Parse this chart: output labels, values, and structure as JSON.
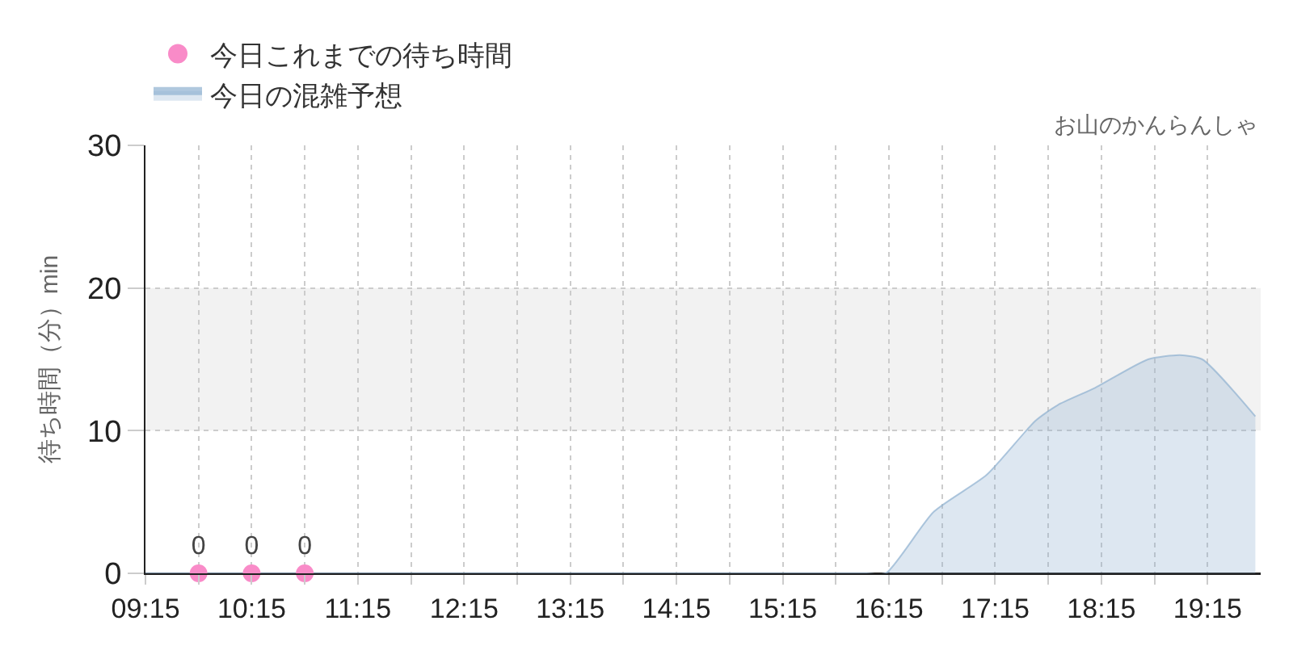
{
  "chart_data": {
    "type": "area",
    "subtitle": "お山のかんらんしゃ",
    "ylabel": "待ち時間（分）min",
    "xlim": [
      9.25,
      19.75
    ],
    "xticks": [
      {
        "value": 9.25,
        "label": "09:15"
      },
      {
        "value": 9.75,
        "label": null
      },
      {
        "value": 10.25,
        "label": "10:15"
      },
      {
        "value": 10.75,
        "label": null
      },
      {
        "value": 11.25,
        "label": "11:15"
      },
      {
        "value": 11.75,
        "label": null
      },
      {
        "value": 12.25,
        "label": "12:15"
      },
      {
        "value": 12.75,
        "label": null
      },
      {
        "value": 13.25,
        "label": "13:15"
      },
      {
        "value": 13.75,
        "label": null
      },
      {
        "value": 14.25,
        "label": "14:15"
      },
      {
        "value": 14.75,
        "label": null
      },
      {
        "value": 15.25,
        "label": "15:15"
      },
      {
        "value": 15.75,
        "label": null
      },
      {
        "value": 16.25,
        "label": "16:15"
      },
      {
        "value": 16.75,
        "label": null
      },
      {
        "value": 17.25,
        "label": "17:15"
      },
      {
        "value": 17.75,
        "label": null
      },
      {
        "value": 18.25,
        "label": "18:15"
      },
      {
        "value": 18.75,
        "label": null
      },
      {
        "value": 19.25,
        "label": "19:15"
      }
    ],
    "ylim": [
      0,
      30
    ],
    "yticks": [
      0,
      10,
      20,
      30
    ],
    "grid": true,
    "legend": "top left",
    "bands": [
      {
        "axis": "y",
        "from": 10,
        "to": 20,
        "color": "#f2f2f2"
      }
    ],
    "series": [
      {
        "name": "今日これまでの待ち時間",
        "type": "scatter",
        "marker": "circle",
        "color": "#f98bc8",
        "x": [
          9.75,
          10.25,
          10.75
        ],
        "values": [
          0,
          0,
          0
        ],
        "value_labels": [
          "0",
          "0",
          "0"
        ]
      },
      {
        "name": "今日の混雑予想",
        "color": "#8fb1d0",
        "x": [
          9.25,
          12,
          15.9,
          16.04,
          16.22,
          16.67,
          17.17,
          17.63,
          17.84,
          18.19,
          18.69,
          18.99,
          19.2,
          19.7
        ],
        "values": [
          0,
          0,
          0,
          0,
          0,
          4.3,
          6.9,
          10.7,
          11.8,
          13.0,
          15.0,
          15.3,
          15.0,
          11.0
        ]
      }
    ]
  }
}
